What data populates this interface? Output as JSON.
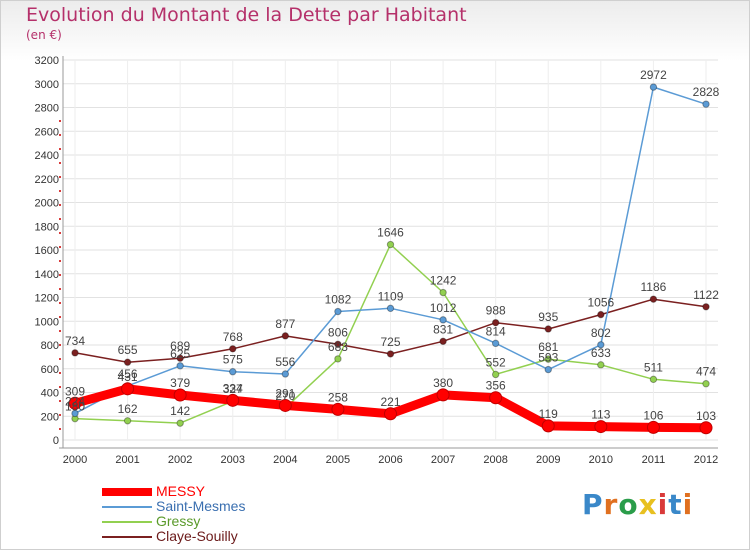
{
  "page": {
    "title": "Evolution du Montant de la Dette par Habitant",
    "unit": "(en €)",
    "logo_text": "Proxiti",
    "logo_colors": [
      "#3a88c9",
      "#e07020",
      "#2a9d4a",
      "#e8c020",
      "#d93a3a",
      "#3a88c9",
      "#e07020"
    ]
  },
  "chart_data": {
    "type": "line",
    "title": "Evolution du Montant de la Dette par Habitant",
    "subtitle": "(en €)",
    "xlabel": "",
    "ylabel": "",
    "x": [
      "2000",
      "2001",
      "2002",
      "2003",
      "2004",
      "2005",
      "2006",
      "2007",
      "2008",
      "2009",
      "2010",
      "2011",
      "2012"
    ],
    "ylim": [
      0,
      3200
    ],
    "yticks": [
      0,
      200,
      400,
      600,
      800,
      1000,
      1200,
      1400,
      1600,
      1800,
      2000,
      2200,
      2400,
      2600,
      2800,
      3000,
      3200
    ],
    "grid": true,
    "legend_position": "bottom-left",
    "series": [
      {
        "name": "MESSY",
        "color": "#ff0000",
        "values": [
          309,
          431,
          379,
          334,
          291,
          258,
          221,
          380,
          356,
          119,
          113,
          106,
          103
        ]
      },
      {
        "name": "Saint-Mesmes",
        "color": "#5b9bd5",
        "values": [
          224,
          456,
          625,
          575,
          556,
          1082,
          1109,
          1012,
          814,
          593,
          802,
          2972,
          2828
        ]
      },
      {
        "name": "Gressy",
        "color": "#92d050",
        "values": [
          180,
          162,
          142,
          327,
          270,
          683,
          1646,
          1242,
          552,
          681,
          633,
          511,
          474
        ]
      },
      {
        "name": "Claye-Souilly",
        "color": "#7b2020",
        "values": [
          734,
          655,
          689,
          768,
          877,
          806,
          725,
          831,
          988,
          935,
          1056,
          1186,
          1122
        ]
      }
    ]
  }
}
